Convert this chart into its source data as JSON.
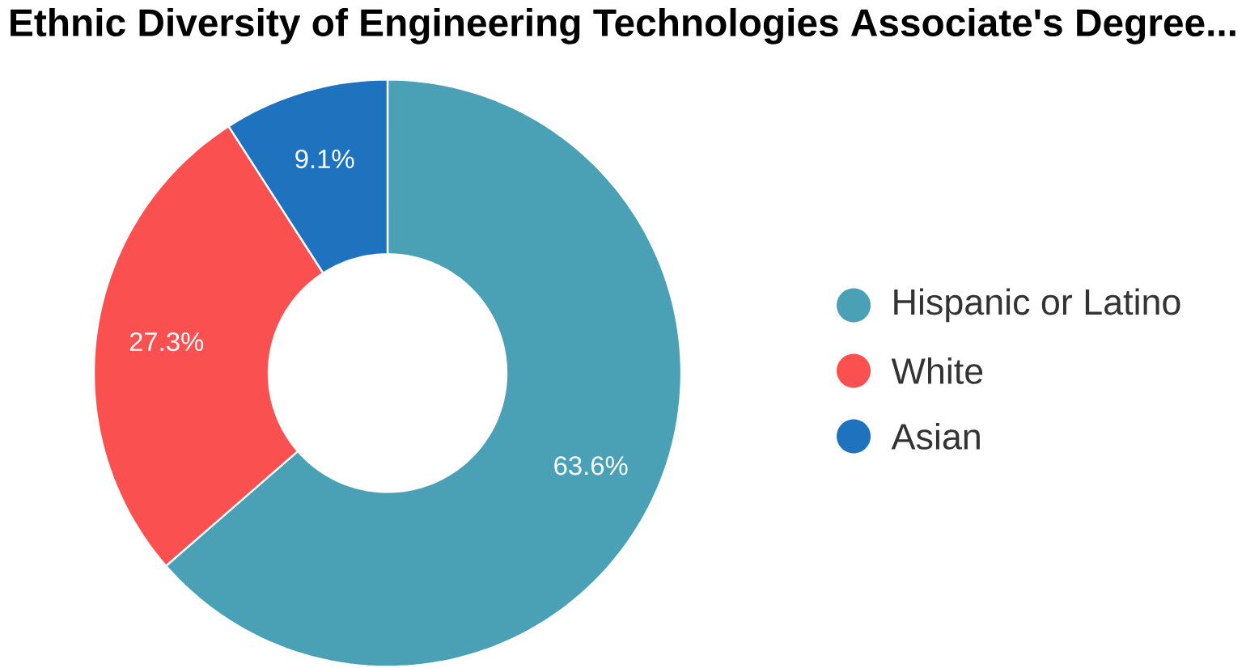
{
  "chart_data": {
    "type": "donut",
    "title": "Ethnic Diversity of Engineering Technologies Associate's Degree...",
    "categories": [
      "Hispanic or Latino",
      "White",
      "Asian"
    ],
    "values": [
      63.6,
      27.3,
      9.1
    ],
    "value_labels": [
      "63.6%",
      "27.3%",
      "9.1%"
    ],
    "colors": [
      "#4aa0b5",
      "#fa5050",
      "#1f72bd"
    ],
    "legend": "right"
  }
}
